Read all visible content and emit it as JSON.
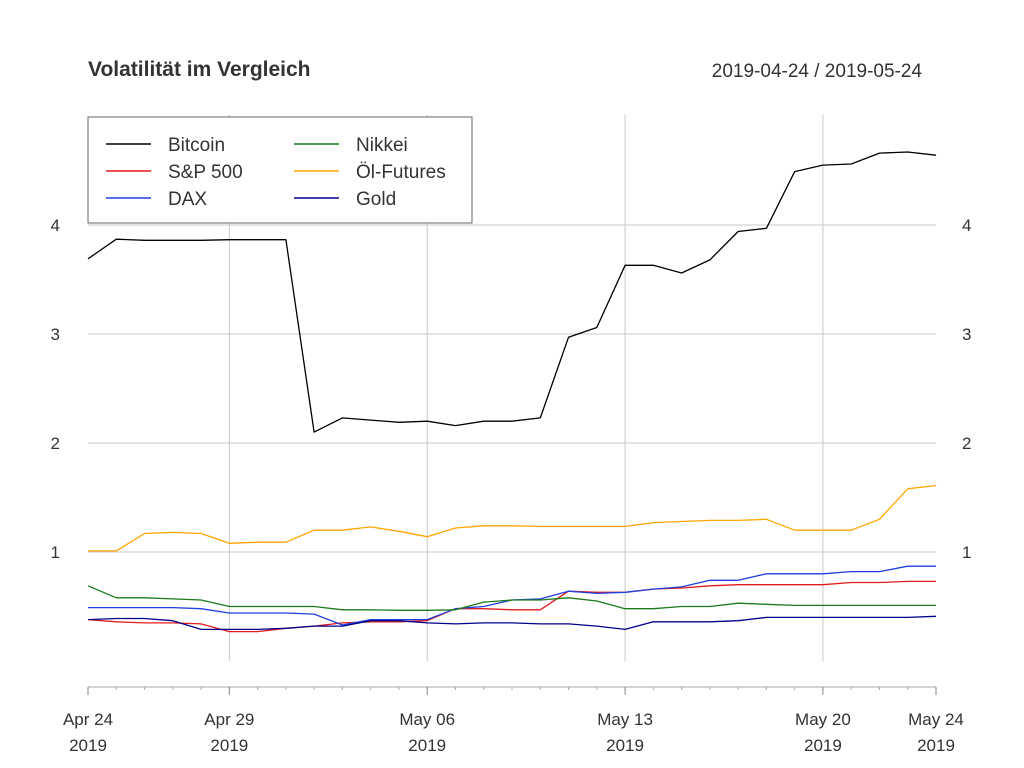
{
  "header": {
    "title": "Volatilität im Vergleich",
    "date_range": "2019-04-24 / 2019-05-24"
  },
  "chart_data": {
    "type": "line",
    "title": "Volatilität im Vergleich",
    "subtitle": "2019-04-24 / 2019-05-24",
    "xlabel": "",
    "ylabel": "",
    "x": [
      "2019-04-24",
      "2019-04-25",
      "2019-04-26",
      "2019-04-27",
      "2019-04-28",
      "2019-04-29",
      "2019-04-30",
      "2019-05-01",
      "2019-05-02",
      "2019-05-03",
      "2019-05-04",
      "2019-05-05",
      "2019-05-06",
      "2019-05-07",
      "2019-05-08",
      "2019-05-09",
      "2019-05-10",
      "2019-05-11",
      "2019-05-12",
      "2019-05-13",
      "2019-05-14",
      "2019-05-15",
      "2019-05-16",
      "2019-05-17",
      "2019-05-18",
      "2019-05-19",
      "2019-05-20",
      "2019-05-21",
      "2019-05-22",
      "2019-05-23",
      "2019-05-24"
    ],
    "x_ticks": [
      {
        "date": "2019-04-24",
        "label": "Apr 24",
        "year": "2019"
      },
      {
        "date": "2019-04-29",
        "label": "Apr 29",
        "year": "2019"
      },
      {
        "date": "2019-05-06",
        "label": "May 06",
        "year": "2019"
      },
      {
        "date": "2019-05-13",
        "label": "May 13",
        "year": "2019"
      },
      {
        "date": "2019-05-20",
        "label": "May 20",
        "year": "2019"
      },
      {
        "date": "2019-05-24",
        "label": "May 24",
        "year": "2019"
      }
    ],
    "y_ticks": [
      1,
      2,
      3,
      4
    ],
    "ylim": [
      0,
      4.85
    ],
    "grid": true,
    "legend_position": "top-left",
    "legend_columns": 2,
    "series": [
      {
        "name": "Bitcoin",
        "color": "#000000",
        "values": [
          3.69,
          3.87,
          3.86,
          3.86,
          3.86,
          3.865,
          3.865,
          3.865,
          2.1,
          2.23,
          2.21,
          2.19,
          2.2,
          2.16,
          2.2,
          2.2,
          2.23,
          2.97,
          3.06,
          3.63,
          3.63,
          3.56,
          3.68,
          3.94,
          3.97,
          4.49,
          4.55,
          4.56,
          4.66,
          4.67,
          4.64
        ]
      },
      {
        "name": "S&P 500",
        "color": "#e41a1c",
        "values": [
          0.38,
          0.36,
          0.35,
          0.35,
          0.34,
          0.27,
          0.27,
          0.3,
          0.32,
          0.35,
          0.36,
          0.36,
          0.37,
          0.48,
          0.48,
          0.47,
          0.47,
          0.64,
          0.63,
          0.63,
          0.66,
          0.67,
          0.69,
          0.7,
          0.7,
          0.7,
          0.7,
          0.72,
          0.72,
          0.73,
          0.73
        ]
      },
      {
        "name": "DAX",
        "color": "#1f3fe0",
        "values": [
          0.49,
          0.49,
          0.49,
          0.49,
          0.48,
          0.44,
          0.44,
          0.44,
          0.43,
          0.33,
          0.38,
          0.38,
          0.38,
          0.48,
          0.5,
          0.56,
          0.57,
          0.64,
          0.62,
          0.63,
          0.66,
          0.68,
          0.74,
          0.74,
          0.8,
          0.8,
          0.8,
          0.82,
          0.82,
          0.87,
          0.87
        ]
      },
      {
        "name": "Nikkei",
        "color": "#1b7a1b",
        "values": [
          0.69,
          0.58,
          0.58,
          0.57,
          0.56,
          0.5,
          0.5,
          0.5,
          0.5,
          0.47,
          0.47,
          0.465,
          0.465,
          0.47,
          0.54,
          0.56,
          0.56,
          0.58,
          0.55,
          0.48,
          0.48,
          0.5,
          0.5,
          0.53,
          0.52,
          0.51,
          0.51,
          0.51,
          0.51,
          0.51,
          0.51
        ]
      },
      {
        "name": "Öl-Futures",
        "color": "#ffa500",
        "values": [
          1.01,
          1.01,
          1.17,
          1.18,
          1.17,
          1.08,
          1.09,
          1.09,
          1.2,
          1.2,
          1.23,
          1.19,
          1.14,
          1.22,
          1.24,
          1.24,
          1.235,
          1.235,
          1.235,
          1.235,
          1.27,
          1.28,
          1.29,
          1.29,
          1.3,
          1.2,
          1.2,
          1.2,
          1.3,
          1.58,
          1.61
        ]
      },
      {
        "name": "Gold",
        "color": "#00008b",
        "values": [
          0.38,
          0.39,
          0.39,
          0.37,
          0.29,
          0.29,
          0.29,
          0.3,
          0.32,
          0.32,
          0.37,
          0.37,
          0.35,
          0.34,
          0.35,
          0.35,
          0.34,
          0.34,
          0.32,
          0.29,
          0.36,
          0.36,
          0.36,
          0.37,
          0.4,
          0.4,
          0.4,
          0.4,
          0.4,
          0.4,
          0.41
        ]
      }
    ]
  }
}
